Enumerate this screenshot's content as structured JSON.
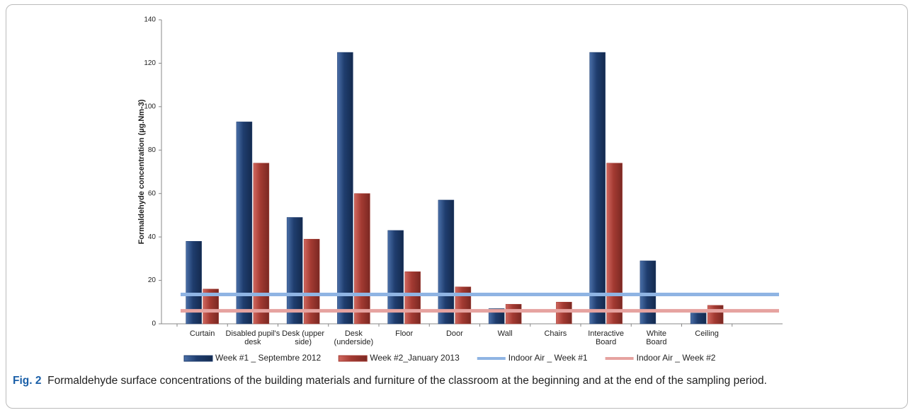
{
  "chart_data": {
    "type": "bar",
    "ylabel": "Formaldehyde concentration (µg.Nm-3)",
    "categories": [
      "Curtain",
      "Disabled pupil's desk",
      "Desk (upper side)",
      "Desk (underside)",
      "Floor",
      "Door",
      "Wall",
      "Chairs",
      "Interactive Board",
      "White Board",
      "Ceiling",
      null
    ],
    "series": [
      {
        "name": "Week #1 _ Septembre 2012",
        "color": "#1f3d6e",
        "values": [
          38,
          93,
          49,
          125,
          43,
          57,
          7,
          null,
          125,
          29,
          5,
          null
        ]
      },
      {
        "name": "Week #2_January 2013",
        "color": "#a33a32",
        "values": [
          16,
          74,
          39,
          60,
          24,
          17,
          9,
          10,
          74,
          null,
          8.5,
          null
        ]
      }
    ],
    "reference_lines": [
      {
        "name": "Indoor Air _ Week #1",
        "color": "#8fb4e3",
        "value": 13.5
      },
      {
        "name": "Indoor Air _ Week #2",
        "color": "#e6a3a0",
        "value": 6
      }
    ],
    "ylim": [
      0,
      140
    ],
    "yticks": [
      0,
      20,
      40,
      60,
      80,
      100,
      120,
      140
    ],
    "grid": false
  },
  "caption": {
    "label": "Fig. 2",
    "text": "Formaldehyde surface concentrations of the building materials and furniture of the classroom at the beginning and at the end of the sampling period."
  }
}
